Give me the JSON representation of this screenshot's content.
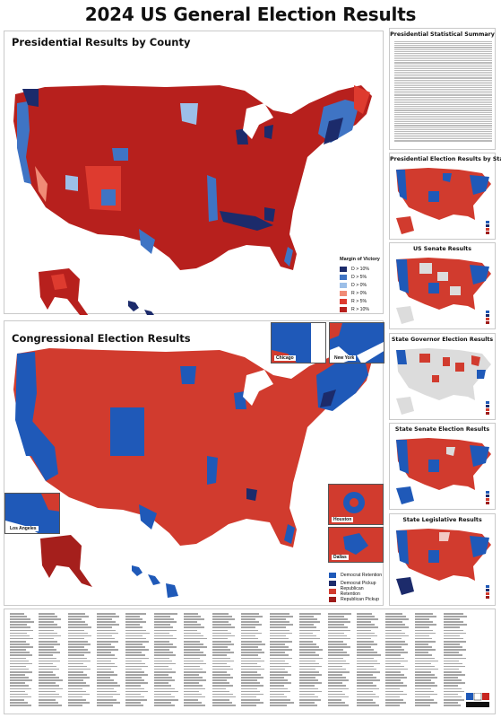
{
  "title": "2024 US General Election Results",
  "county_panel": {
    "title": "Presidential Results by County",
    "legend": {
      "title": "Margin of Victory",
      "items": [
        {
          "label": "D > 10%",
          "color": "#1c2b6b"
        },
        {
          "label": "D > 5%",
          "color": "#3f74c4"
        },
        {
          "label": "D > 0%",
          "color": "#9cbfe8"
        },
        {
          "label": "R > 0%",
          "color": "#f08b76"
        },
        {
          "label": "R > 5%",
          "color": "#de3b2f"
        },
        {
          "label": "R > 10%",
          "color": "#b7201d"
        }
      ]
    }
  },
  "congress_panel": {
    "title": "Congressional Election Results",
    "insets": {
      "chicago": "Chicago",
      "new_york": "New York",
      "los_angeles": "Los Angeles",
      "houston": "Houston",
      "dallas": "Dallas"
    },
    "legend": {
      "items": [
        {
          "label": "Democrat Retention",
          "color": "#1f59b8"
        },
        {
          "label": "Democrat Pickup",
          "color": "#1c2b6b"
        },
        {
          "label": "Republican Retention",
          "color": "#d13b2e"
        },
        {
          "label": "Republican Pickup",
          "color": "#9e1c1a"
        }
      ]
    }
  },
  "side_panels": {
    "stats": "Presidential Statistical Summary",
    "pres_state": "Presidential Election Results by State",
    "senate": "US Senate Results",
    "governor": "State Governor Election Results",
    "state_senate": "State Senate Election Results",
    "legislative": "State Legislative Results"
  },
  "colors": {
    "rep": "#c8261f",
    "rep_dark": "#a51f1c",
    "dem": "#1f59b8",
    "dem_dark": "#1c2b6b",
    "none": "#dcdcdc",
    "water": "#ffffff"
  }
}
